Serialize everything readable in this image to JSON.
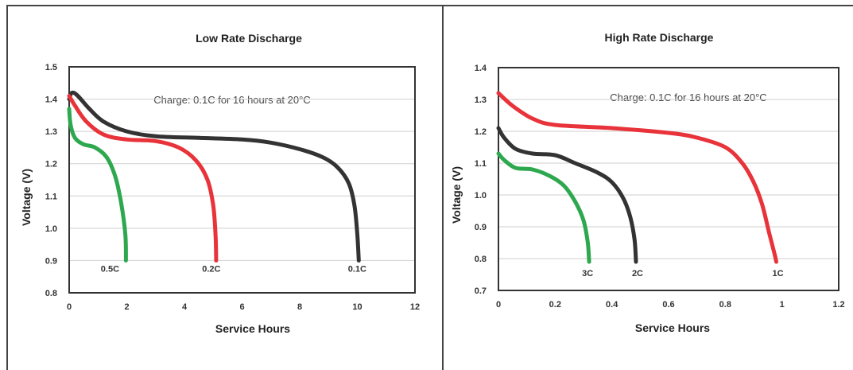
{
  "chart_data": [
    {
      "type": "line",
      "title": "Low Rate Discharge",
      "xlabel": "Service Hours",
      "ylabel": "Voltage (V)",
      "xlim": [
        0,
        12
      ],
      "ylim": [
        0.8,
        1.5
      ],
      "xticks": [
        "0",
        "2",
        "4",
        "6",
        "8",
        "10",
        "12"
      ],
      "yticks": [
        "0.8",
        "0.9",
        "1.0",
        "1.1",
        "1.2",
        "1.3",
        "1.4",
        "1.5"
      ],
      "xtick_values": [
        0,
        2,
        4,
        6,
        8,
        10,
        12
      ],
      "ytick_values": [
        0.8,
        0.9,
        1.0,
        1.1,
        1.2,
        1.3,
        1.4,
        1.5
      ],
      "grid": true,
      "annotation": "Charge: 0.1C for 16 hours at 20°C",
      "series": [
        {
          "label": "0.1C",
          "color": "#333333",
          "points": [
            [
              0,
              1.4
            ],
            [
              0.1,
              1.42
            ],
            [
              0.3,
              1.41
            ],
            [
              0.7,
              1.37
            ],
            [
              1.2,
              1.33
            ],
            [
              2,
              1.3
            ],
            [
              3,
              1.285
            ],
            [
              4.5,
              1.28
            ],
            [
              6,
              1.275
            ],
            [
              7,
              1.265
            ],
            [
              8,
              1.245
            ],
            [
              8.8,
              1.22
            ],
            [
              9.3,
              1.19
            ],
            [
              9.7,
              1.14
            ],
            [
              9.9,
              1.07
            ],
            [
              10.0,
              0.98
            ],
            [
              10.05,
              0.9
            ]
          ]
        },
        {
          "label": "0.2C",
          "color": "#e8333a",
          "points": [
            [
              0,
              1.41
            ],
            [
              0.2,
              1.38
            ],
            [
              0.6,
              1.33
            ],
            [
              1.2,
              1.29
            ],
            [
              2,
              1.275
            ],
            [
              3,
              1.27
            ],
            [
              3.8,
              1.25
            ],
            [
              4.4,
              1.21
            ],
            [
              4.8,
              1.15
            ],
            [
              5.0,
              1.07
            ],
            [
              5.08,
              0.98
            ],
            [
              5.1,
              0.9
            ]
          ]
        },
        {
          "label": "0.5C",
          "color": "#2ea84f",
          "points": [
            [
              0,
              1.37
            ],
            [
              0.05,
              1.32
            ],
            [
              0.2,
              1.28
            ],
            [
              0.5,
              1.26
            ],
            [
              0.9,
              1.25
            ],
            [
              1.3,
              1.22
            ],
            [
              1.6,
              1.16
            ],
            [
              1.8,
              1.08
            ],
            [
              1.95,
              0.98
            ],
            [
              1.97,
              0.9
            ]
          ]
        }
      ]
    },
    {
      "type": "line",
      "title": "High Rate Discharge",
      "xlabel": "Service Hours",
      "ylabel": "Voltage (V)",
      "xlim": [
        0,
        1.2
      ],
      "ylim": [
        0.7,
        1.4
      ],
      "xticks": [
        "0",
        "0.2",
        "0.4",
        "0.6",
        "0.8",
        "1",
        "1.2"
      ],
      "yticks": [
        "0.7",
        "0.8",
        "0.9",
        "1.0",
        "1.1",
        "1.2",
        "1.3",
        "1.4"
      ],
      "xtick_values": [
        0,
        0.2,
        0.4,
        0.6,
        0.8,
        1.0,
        1.2
      ],
      "ytick_values": [
        0.7,
        0.8,
        0.9,
        1.0,
        1.1,
        1.2,
        1.3,
        1.4
      ],
      "grid": true,
      "annotation": "Charge: 0.1C for 16 hours at 20°C",
      "series": [
        {
          "label": "1C",
          "color": "#e8333a",
          "points": [
            [
              0,
              1.32
            ],
            [
              0.05,
              1.28
            ],
            [
              0.12,
              1.24
            ],
            [
              0.2,
              1.22
            ],
            [
              0.4,
              1.21
            ],
            [
              0.6,
              1.195
            ],
            [
              0.7,
              1.18
            ],
            [
              0.8,
              1.15
            ],
            [
              0.86,
              1.1
            ],
            [
              0.9,
              1.04
            ],
            [
              0.93,
              0.97
            ],
            [
              0.955,
              0.88
            ],
            [
              0.975,
              0.81
            ],
            [
              0.98,
              0.79
            ]
          ]
        },
        {
          "label": "2C",
          "color": "#333333",
          "points": [
            [
              0,
              1.21
            ],
            [
              0.02,
              1.18
            ],
            [
              0.06,
              1.145
            ],
            [
              0.12,
              1.13
            ],
            [
              0.2,
              1.125
            ],
            [
              0.27,
              1.1
            ],
            [
              0.35,
              1.07
            ],
            [
              0.4,
              1.04
            ],
            [
              0.44,
              0.99
            ],
            [
              0.465,
              0.93
            ],
            [
              0.48,
              0.86
            ],
            [
              0.485,
              0.79
            ]
          ]
        },
        {
          "label": "3C",
          "color": "#2ea84f",
          "points": [
            [
              0,
              1.13
            ],
            [
              0.02,
              1.11
            ],
            [
              0.06,
              1.085
            ],
            [
              0.12,
              1.08
            ],
            [
              0.18,
              1.06
            ],
            [
              0.23,
              1.03
            ],
            [
              0.27,
              0.98
            ],
            [
              0.3,
              0.92
            ],
            [
              0.315,
              0.85
            ],
            [
              0.32,
              0.79
            ]
          ]
        }
      ]
    }
  ]
}
